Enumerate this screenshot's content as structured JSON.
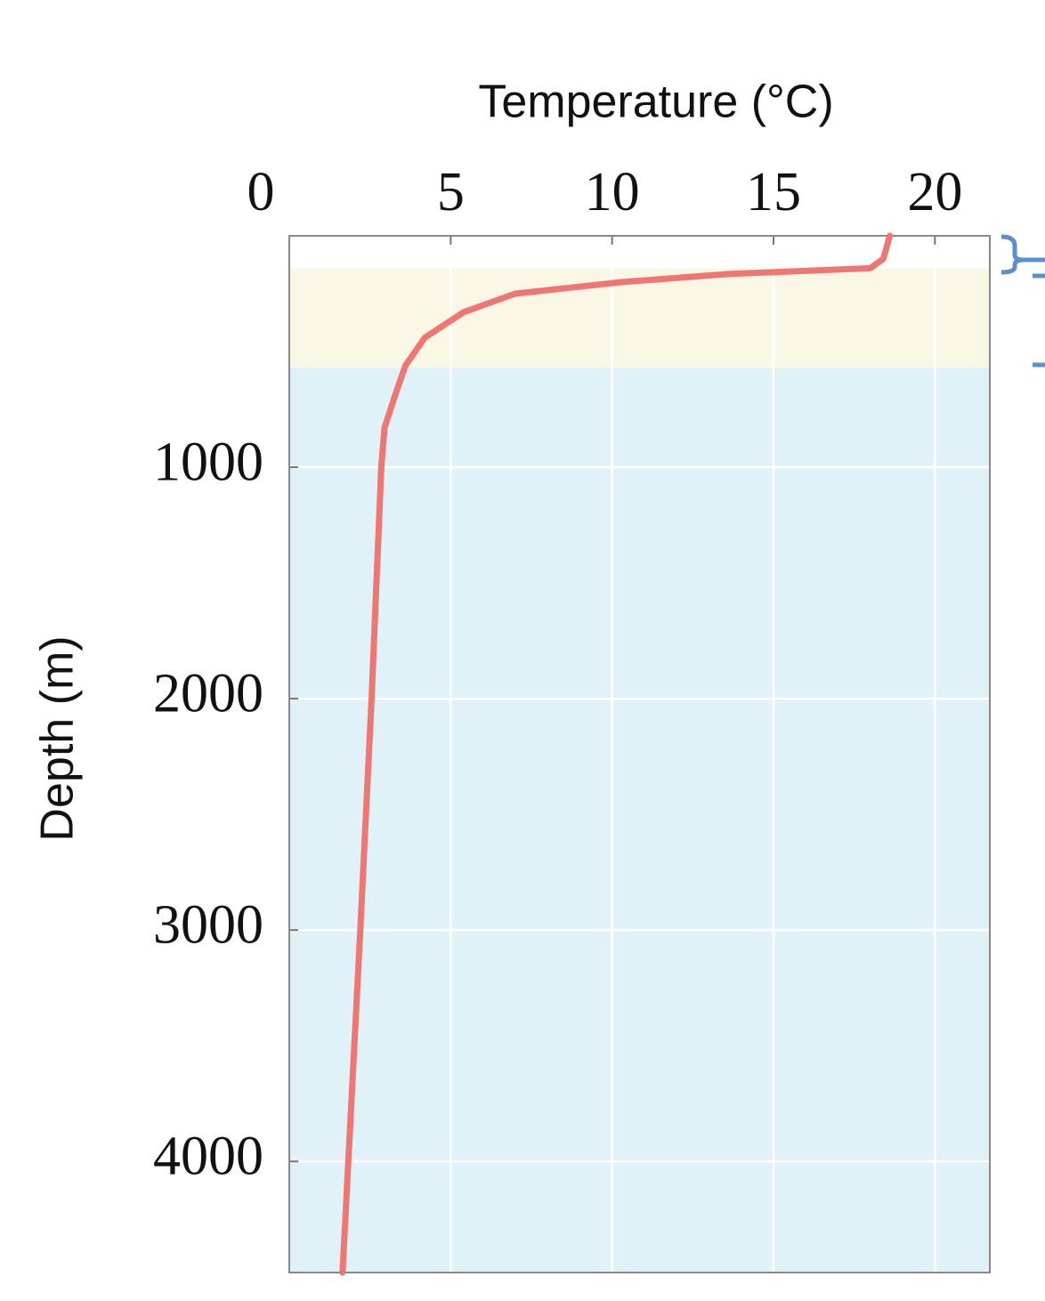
{
  "chart_data": {
    "type": "line",
    "xlabel": "Temperature (°C)",
    "ylabel": "Depth (m)",
    "xlim": [
      0,
      21.7
    ],
    "ylim": [
      4480,
      0
    ],
    "xticks": [
      0,
      5,
      10,
      15,
      20
    ],
    "yticks": [
      1000,
      2000,
      3000,
      4000
    ],
    "grid": true,
    "shaded_bands": [
      {
        "ylim": [
          140,
          570
        ],
        "color": "#fbf7e6"
      },
      {
        "ylim": [
          570,
          4480
        ],
        "color": "#e0f2f8"
      }
    ],
    "series": [
      {
        "color": "#ee7673",
        "x": [
          18.6,
          18.4,
          18.0,
          13.6,
          10.3,
          7.0,
          5.4,
          4.2,
          3.6,
          3.3,
          2.95,
          2.85,
          2.55,
          2.2,
          1.65
        ],
        "values": [
          0,
          100,
          140,
          165,
          200,
          250,
          330,
          440,
          560,
          680,
          830,
          1000,
          2000,
          3000,
          4480
        ]
      }
    ]
  }
}
